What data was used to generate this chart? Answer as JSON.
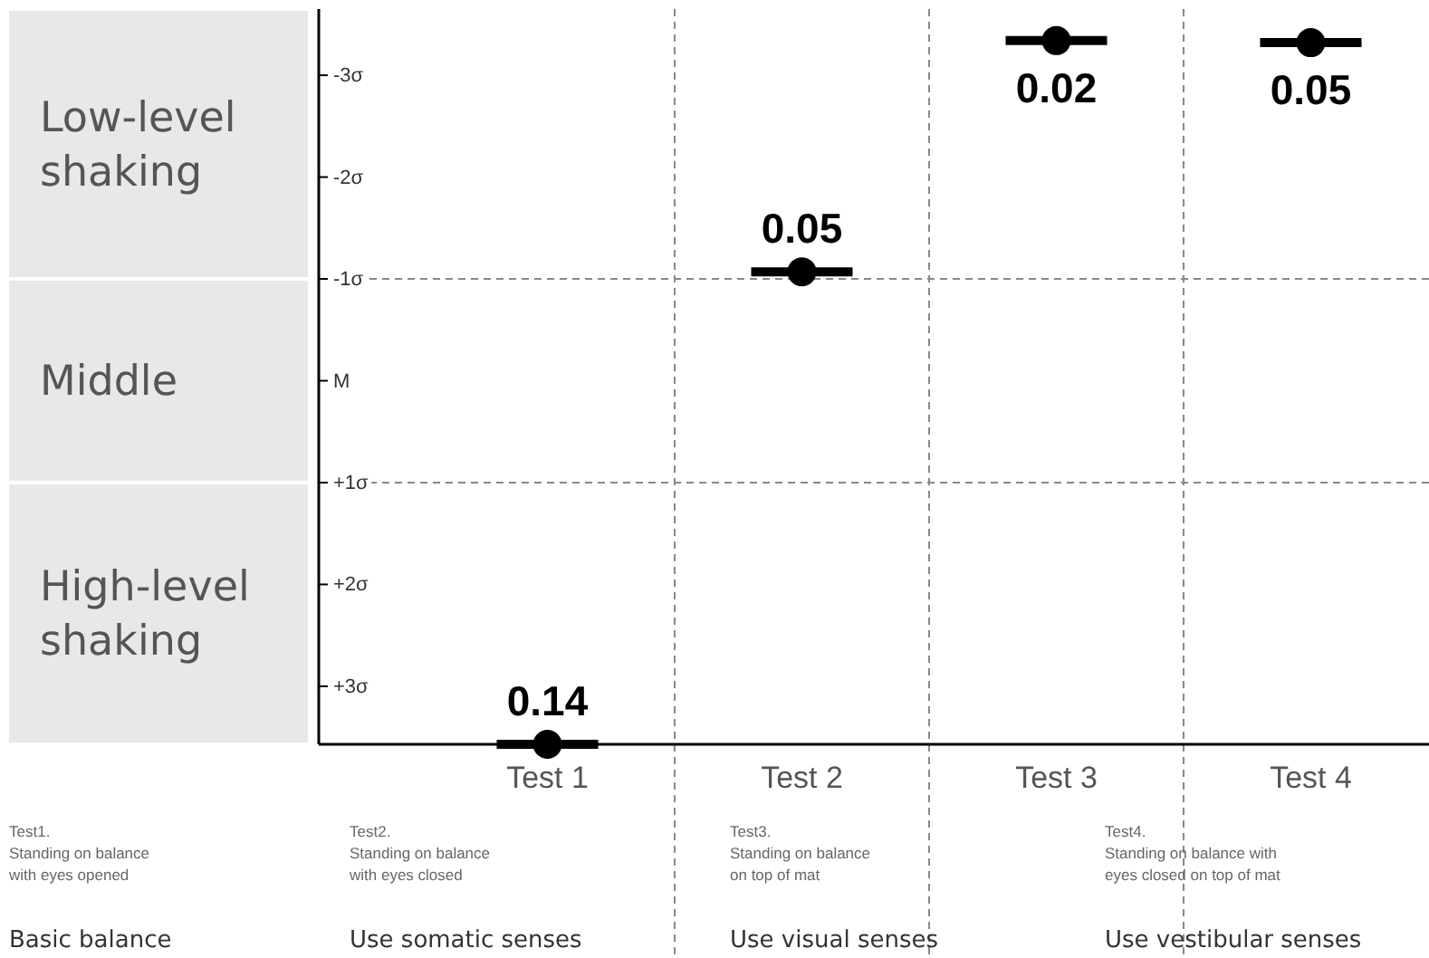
{
  "chart_data": {
    "type": "scatter",
    "categories": [
      "Test 1",
      "Test 2",
      "Test 3",
      "Test 4"
    ],
    "series": [
      {
        "color": "#000000",
        "values": [
          3.57,
          -1.07,
          -3.34,
          -3.32
        ]
      }
    ],
    "ylim": [
      3.57,
      -3.65
    ],
    "yticks": [
      {
        "value": -3,
        "label": "-3σ"
      },
      {
        "value": -2,
        "label": "-2σ"
      },
      {
        "value": -1,
        "label": "-1σ"
      },
      {
        "value": 0,
        "label": "M"
      },
      {
        "value": 1,
        "label": "+1σ"
      },
      {
        "value": 2,
        "label": "+2σ"
      },
      {
        "value": 3,
        "label": "+3σ"
      }
    ],
    "marker": "circle",
    "grid": "x",
    "ref_lines": [
      {
        "axis": "y",
        "value": -1,
        "color": "#888888",
        "line_style": "dashed"
      },
      {
        "axis": "y",
        "value": 1,
        "color": "#888888",
        "line_style": "dashed"
      }
    ],
    "annotations": [
      {
        "text": "0.14",
        "x": "Test 1",
        "y": 3.57
      },
      {
        "text": "0.05",
        "x": "Test 2",
        "y": -1.07
      },
      {
        "text": "0.02",
        "x": "Test 3",
        "y": -3.34
      },
      {
        "text": "0.05",
        "x": "Test 4",
        "y": -3.32
      },
      "Low-level shaking",
      "Middle",
      "High-level shaking",
      "Test1.\nStanding on balance\nwith eyes opened",
      "Basic balance",
      "Test2.\nStanding on balance\nwith eyes closed",
      "Use somatic senses",
      "Test3.\nStanding on balance\non top of mat",
      "Use visual senses",
      "Test4.\nStanding on balance with\neyes closed on top of mat",
      "Use vestibular senses"
    ]
  }
}
